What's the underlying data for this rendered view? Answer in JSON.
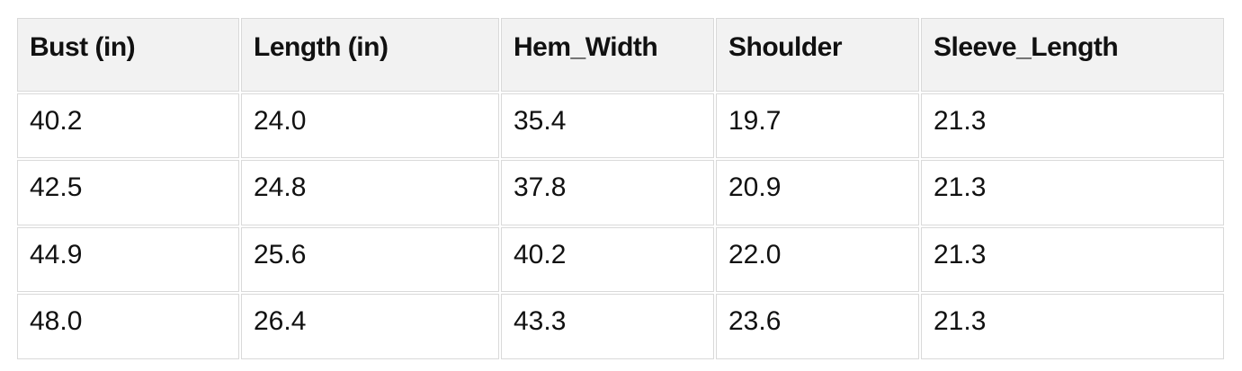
{
  "chart_data": {
    "type": "table",
    "title": "",
    "columns": [
      "Bust (in)",
      "Length (in)",
      "Hem_Width",
      "Shoulder",
      "Sleeve_Length"
    ],
    "rows": [
      [
        "40.2",
        "24.0",
        "35.4",
        "19.7",
        "21.3"
      ],
      [
        "42.5",
        "24.8",
        "37.8",
        "20.9",
        "21.3"
      ],
      [
        "44.9",
        "25.6",
        "40.2",
        "22.0",
        "21.3"
      ],
      [
        "48.0",
        "26.4",
        "43.3",
        "23.6",
        "21.3"
      ]
    ]
  },
  "colors": {
    "header_bg": "#f2f2f2",
    "cell_bg": "#ffffff",
    "border": "#d9d9d9",
    "text": "#111111",
    "page_bg": "#ffffff"
  }
}
